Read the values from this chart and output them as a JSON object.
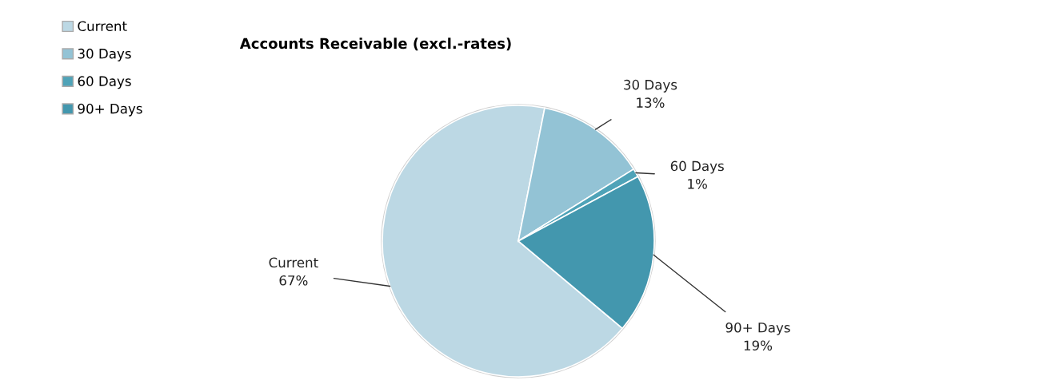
{
  "chart_data": {
    "type": "pie",
    "title": "Accounts Receivable (excl.-rates)",
    "categories": [
      "Current",
      "30 Days",
      "60 Days",
      "90+ Days"
    ],
    "values": [
      67,
      13,
      1,
      19
    ],
    "colors": [
      "#bcd8e4",
      "#93c3d5",
      "#4fa3b8",
      "#4397ae"
    ],
    "value_labels": [
      "67%",
      "13%",
      "1%",
      "19%"
    ],
    "legend": "top left"
  }
}
